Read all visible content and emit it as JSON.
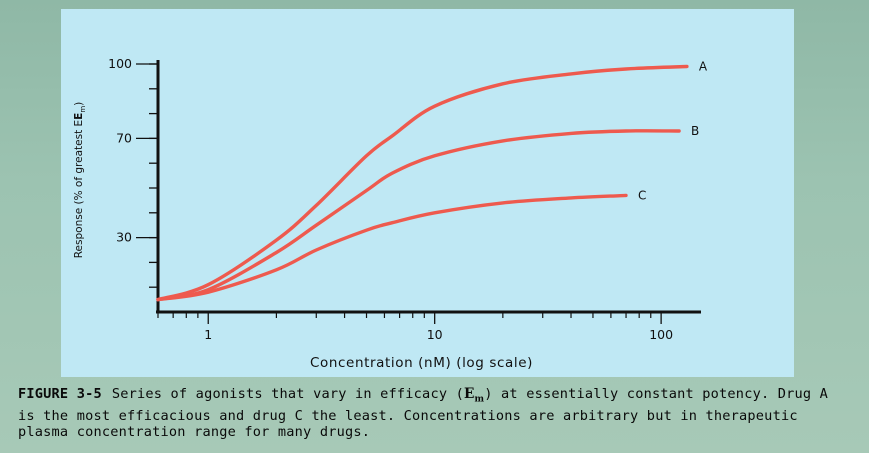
{
  "colors": {
    "curve": "#ee5a4e",
    "axis": "#111111",
    "panel": "#bfe8f4"
  },
  "chart_data": {
    "type": "line",
    "xscale": "log",
    "xlim": [
      0.6,
      150
    ],
    "ylim": [
      0,
      100
    ],
    "xticks": [
      1,
      10,
      100
    ],
    "xtick_labels": [
      "1",
      "10",
      "100"
    ],
    "yticks": [
      30,
      70,
      100
    ],
    "ytick_labels": [
      "30",
      "70",
      "100"
    ],
    "xlabel": "Concentration (nM) (log scale)",
    "ylabel": "Response (% of greatest E",
    "ylabel_sub": "m",
    "ylabel_close": ")",
    "series": [
      {
        "name": "A",
        "x": [
          0.6,
          1,
          2,
          3,
          5,
          6.5,
          10,
          20,
          40,
          70,
          130
        ],
        "y": [
          5,
          11,
          29,
          43,
          63,
          71,
          83,
          92,
          96,
          98,
          99
        ]
      },
      {
        "name": "B",
        "x": [
          0.6,
          1,
          2,
          3,
          5,
          6.5,
          10,
          20,
          40,
          70,
          120
        ],
        "y": [
          5,
          9,
          24,
          35,
          49,
          56,
          63,
          69,
          72,
          73,
          73
        ]
      },
      {
        "name": "C",
        "x": [
          0.6,
          1,
          2,
          3,
          5,
          6.5,
          10,
          20,
          40,
          70
        ],
        "y": [
          5,
          8,
          17,
          25,
          33,
          36,
          40,
          44,
          46,
          47
        ]
      }
    ]
  },
  "caption": {
    "label": "FIGURE 3-5",
    "pre": "Series of agonists that vary in efficacy (",
    "em": "E",
    "em_sub": "m",
    "post": ") at essentially constant potency. Drug A is the most efficacious and drug C the least. Concentrations are arbitrary but in therapeutic plasma concentration range for many drugs."
  }
}
